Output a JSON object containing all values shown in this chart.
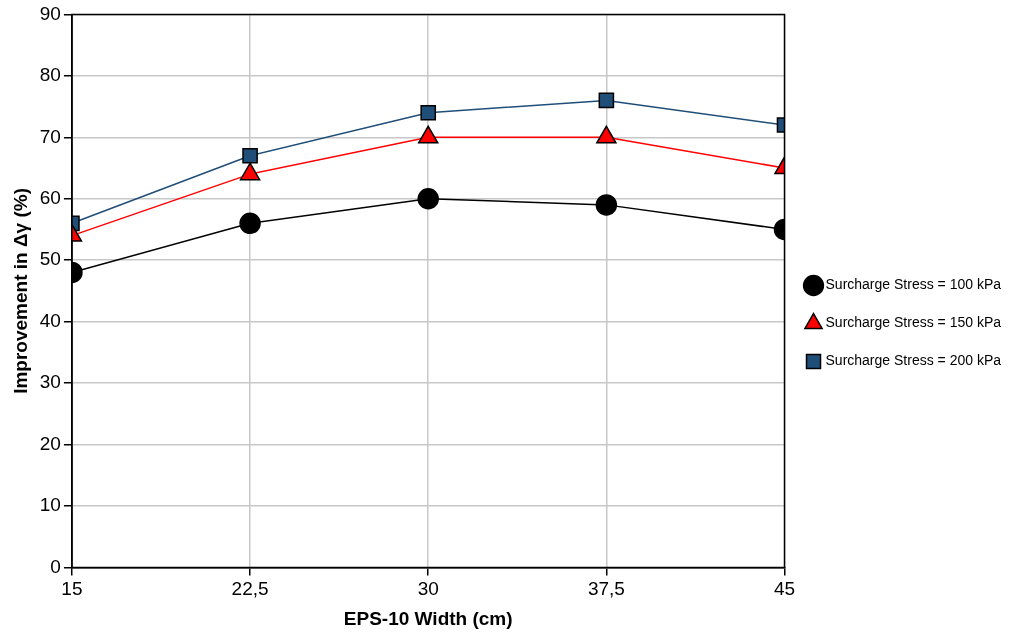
{
  "chart_data": {
    "type": "line",
    "xlabel": "EPS-10 Width (cm)",
    "ylabel": "Improvement in Δγ (%)",
    "x": [
      15,
      22.5,
      30,
      37.5,
      45
    ],
    "series": [
      {
        "name": "Surcharge Stress = 100 kPa",
        "color": "#000000",
        "marker": "circle",
        "values": [
          48,
          56,
          60,
          59,
          55
        ]
      },
      {
        "name": "Surcharge Stress = 150 kPa",
        "color": "#ff0000",
        "marker": "triangle",
        "values": [
          54,
          64,
          70,
          70,
          65
        ]
      },
      {
        "name": "Surcharge Stress = 200 kPa",
        "color": "#1f4e79",
        "marker": "square",
        "values": [
          56,
          67,
          74,
          76,
          72
        ]
      }
    ],
    "xlim": [
      15,
      45
    ],
    "xticks": [
      15,
      {
        "value": 22.5,
        "label": "22,5"
      },
      30,
      {
        "value": 37.5,
        "label": "37,5"
      },
      45
    ],
    "ylim": [
      0,
      90
    ],
    "yticks": [
      0,
      10,
      20,
      30,
      40,
      50,
      60,
      70,
      80,
      90
    ],
    "grid": true,
    "legend": "right",
    "line_style": "solid"
  }
}
